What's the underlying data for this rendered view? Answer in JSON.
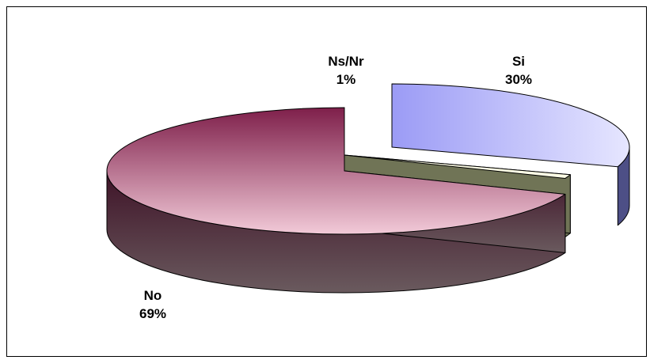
{
  "chart_data": {
    "type": "pie",
    "title": "",
    "style": "3d-exploded",
    "legend": "none",
    "slices": [
      {
        "label": "Si",
        "percent_label": "30%",
        "value": 30,
        "color_top_light": "#e6e6ff",
        "color_top_dark": "#9b9bf5",
        "color_side": "#4d4f86"
      },
      {
        "label": "Ns/Nr",
        "percent_label": "1%",
        "value": 1,
        "color_top_light": "#ffffe6",
        "color_top_dark": "#ffffe6",
        "color_side": "#707456"
      },
      {
        "label": "No",
        "percent_label": "69%",
        "value": 69,
        "color_top_light": "#f2cad8",
        "color_top_dark": "#7e1f4a",
        "color_side": "#5e2138"
      }
    ]
  }
}
